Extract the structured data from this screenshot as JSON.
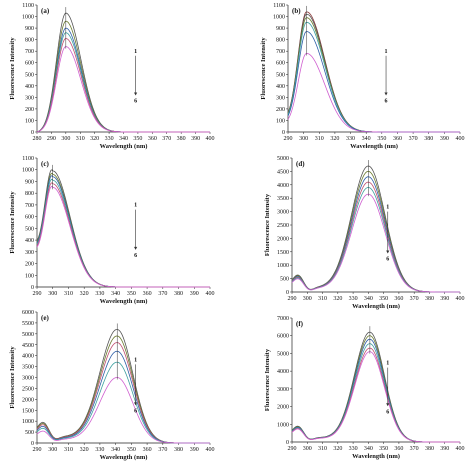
{
  "chart_data": [
    {
      "panel": "(a)",
      "type": "line",
      "xlabel": "Wavelength (nm)",
      "ylabel": "Fluorescence Intensity",
      "xlim": [
        280,
        400
      ],
      "ylim": [
        0,
        1100
      ],
      "xticks": [
        280,
        290,
        300,
        310,
        320,
        330,
        340,
        350,
        360,
        370,
        380,
        390,
        400
      ],
      "yticks": [
        0,
        100,
        200,
        300,
        400,
        500,
        600,
        700,
        800,
        900,
        1000,
        1100
      ],
      "peak_x": 300,
      "leftbase_x": 280,
      "leftbase_frac": 0.0,
      "sigma_left": 6.5,
      "sigma_right": 10.5,
      "tail_end": 345,
      "hump": 0,
      "peaks": [
        1030,
        960,
        900,
        860,
        810,
        740
      ],
      "colors": [
        "#555555",
        "#6b7b2f",
        "#2f5fa8",
        "#3fa0a0",
        "#c05070",
        "#d060d0"
      ],
      "arrow_labels": [
        "1",
        "6"
      ]
    },
    {
      "panel": "(b)",
      "type": "line",
      "xlabel": "Wavelength (nm)",
      "ylabel": "Fluorescence Intensity",
      "xlim": [
        290,
        400
      ],
      "ylim": [
        0,
        1100
      ],
      "xticks": [
        290,
        300,
        310,
        320,
        330,
        340,
        350,
        360,
        370,
        380,
        390,
        400
      ],
      "yticks": [
        0,
        100,
        200,
        300,
        400,
        500,
        600,
        700,
        800,
        900,
        1000,
        1100
      ],
      "peak_x": 302,
      "leftbase_x": 290,
      "leftbase_frac": 0.16,
      "sigma_left": 5.5,
      "sigma_right": 11.5,
      "tail_end": 350,
      "hump": 0,
      "peaks": [
        1040,
        1020,
        990,
        950,
        870,
        680
      ],
      "colors": [
        "#8a3a3a",
        "#555555",
        "#6b7b2f",
        "#3fa0a0",
        "#2f5fa8",
        "#d060d0"
      ],
      "arrow_labels": [
        "1",
        "6"
      ]
    },
    {
      "panel": "(c)",
      "type": "line",
      "xlabel": "Wavelength (nm)",
      "ylabel": "Fluorescence Intensity",
      "xlim": [
        290,
        400
      ],
      "ylim": [
        0,
        1100
      ],
      "xticks": [
        290,
        300,
        310,
        320,
        330,
        340,
        350,
        360,
        370,
        380,
        390,
        400
      ],
      "yticks": [
        0,
        100,
        200,
        300,
        400,
        500,
        600,
        700,
        800,
        900,
        1000,
        1100
      ],
      "peak_x": 300,
      "leftbase_x": 290,
      "leftbase_frac": 0.4,
      "sigma_left": 4.8,
      "sigma_right": 11.0,
      "tail_end": 340,
      "hump": 0,
      "peaks": [
        990,
        960,
        940,
        910,
        880,
        850
      ],
      "colors": [
        "#555555",
        "#6b7b2f",
        "#2f5fa8",
        "#3fa0a0",
        "#c05070",
        "#d060d0"
      ],
      "arrow_labels": [
        "1",
        "6"
      ]
    },
    {
      "panel": "(d)",
      "type": "line",
      "xlabel": "Wavelength (nm)",
      "ylabel": "Fluorescence Intensity",
      "xlim": [
        290,
        400
      ],
      "ylim": [
        0,
        5000
      ],
      "xticks": [
        290,
        300,
        310,
        320,
        330,
        340,
        350,
        360,
        370,
        380,
        390,
        400
      ],
      "yticks": [
        0,
        500,
        1000,
        1500,
        2000,
        2500,
        3000,
        3500,
        4000,
        4500,
        5000
      ],
      "peak_x": 340,
      "leftbase_x": 290,
      "leftbase_frac": 0.05,
      "sigma_left": 11,
      "sigma_right": 11,
      "tail_end": 400,
      "hump": 0.09,
      "peaks": [
        4700,
        4500,
        4300,
        4100,
        3900,
        3650
      ],
      "colors": [
        "#555555",
        "#6b7b2f",
        "#2f5fa8",
        "#c05070",
        "#3fa0a0",
        "#d060d0"
      ],
      "arrow_labels": [
        "1",
        "6"
      ]
    },
    {
      "panel": "(e)",
      "type": "line",
      "xlabel": "Wavelength (nm)",
      "ylabel": "Fluorescence Intensity",
      "xlim": [
        290,
        400
      ],
      "ylim": [
        0,
        6000
      ],
      "xticks": [
        290,
        300,
        310,
        320,
        330,
        340,
        350,
        360,
        370,
        380,
        390,
        400
      ],
      "yticks": [
        0,
        500,
        1000,
        1500,
        2000,
        2500,
        3000,
        3500,
        4000,
        4500,
        5000,
        5500,
        6000
      ],
      "peak_x": 341,
      "leftbase_x": 290,
      "leftbase_frac": 0.08,
      "sigma_left": 11,
      "sigma_right": 10,
      "tail_end": 400,
      "hump": 0.11,
      "peaks": [
        5200,
        4900,
        4600,
        4200,
        3700,
        3000
      ],
      "colors": [
        "#555555",
        "#6b7b2f",
        "#c05070",
        "#2f5fa8",
        "#3fa0a0",
        "#d060d0"
      ],
      "arrow_labels": [
        "1",
        "6"
      ]
    },
    {
      "panel": "(f)",
      "type": "line",
      "xlabel": "Wavelength (nm)",
      "ylabel": "Fluorescence Intensity",
      "xlim": [
        290,
        400
      ],
      "ylim": [
        0,
        7000
      ],
      "xticks": [
        290,
        300,
        310,
        320,
        330,
        340,
        350,
        360,
        370,
        380,
        390,
        400
      ],
      "yticks": [
        0,
        1000,
        2000,
        3000,
        4000,
        5000,
        6000,
        7000
      ],
      "peak_x": 341,
      "leftbase_x": 290,
      "leftbase_frac": 0.06,
      "sigma_left": 10,
      "sigma_right": 9.5,
      "tail_end": 400,
      "hump": 0.09,
      "peaks": [
        6200,
        6000,
        5800,
        5550,
        5300,
        5100
      ],
      "colors": [
        "#555555",
        "#6b7b2f",
        "#2f5fa8",
        "#3fa0a0",
        "#c05070",
        "#d060d0"
      ],
      "arrow_labels": [
        "1",
        "6"
      ]
    }
  ]
}
